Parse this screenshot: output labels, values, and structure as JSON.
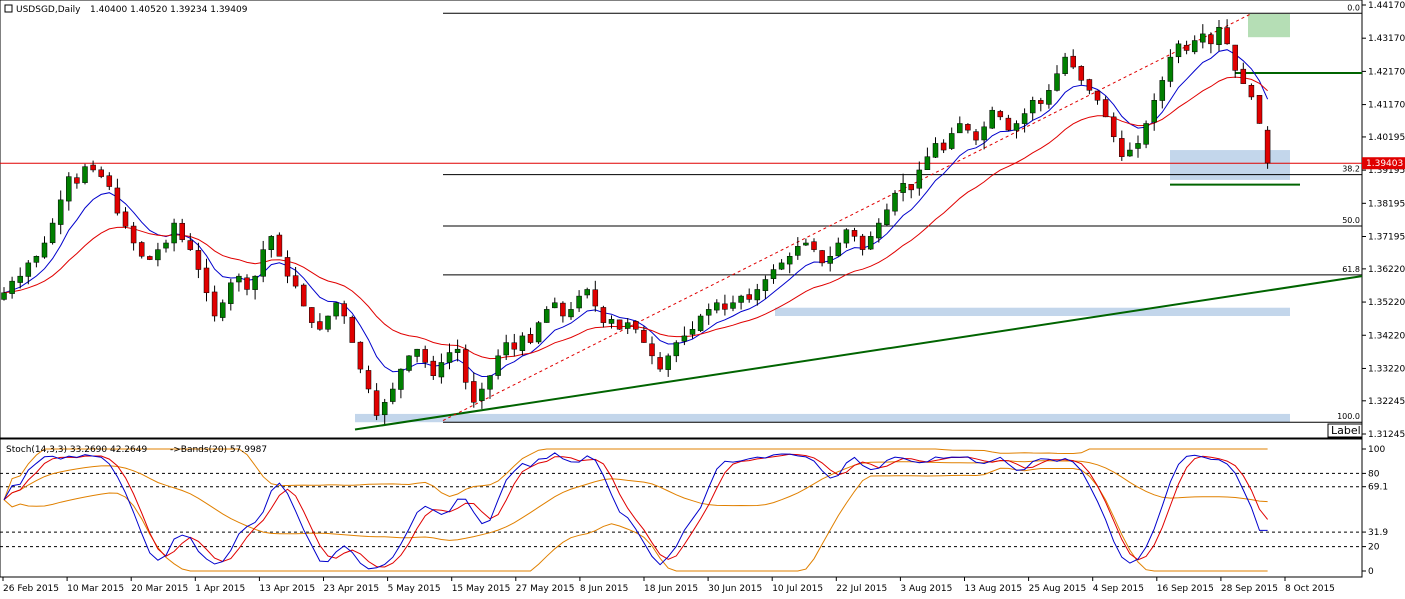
{
  "header": {
    "symbol": "USDSGD,Daily",
    "ohlc": "1.40400 1.40520 1.39234 1.39409",
    "stoch_label": "Stoch(14,3,3) 33.2690 42.2649",
    "bands_label": "->Bands(20) 57.9987"
  },
  "price_axis": {
    "ticks": [
      "1.44170",
      "1.43170",
      "1.42170",
      "1.41170",
      "1.40195",
      "1.39195",
      "1.38195",
      "1.37195",
      "1.36220",
      "1.35220",
      "1.34220",
      "1.33220",
      "1.32245",
      "1.31245"
    ],
    "current_price": "1.39403",
    "current_price_color": "#e00000"
  },
  "fib_levels": [
    {
      "label": "0.0",
      "value": 1.4392
    },
    {
      "label": "38.2",
      "value": 1.3906
    },
    {
      "label": "50.0",
      "value": 1.3751
    },
    {
      "label": "61.8",
      "value": 1.3604
    },
    {
      "label": "100.0",
      "value": 1.316
    }
  ],
  "label_box": "Label",
  "osc_axis": {
    "ticks": [
      "100",
      "80",
      "69.1",
      "31.9",
      "20",
      "0"
    ]
  },
  "date_axis": {
    "ticks": [
      "26 Feb 2015",
      "10 Mar 2015",
      "20 Mar 2015",
      "1 Apr 2015",
      "13 Apr 2015",
      "23 Apr 2015",
      "5 May 2015",
      "15 May 2015",
      "27 May 2015",
      "8 Jun 2015",
      "18 Jun 2015",
      "30 Jun 2015",
      "10 Jul 2015",
      "22 Jul 2015",
      "3 Aug 2015",
      "13 Aug 2015",
      "25 Aug 2015",
      "4 Sep 2015",
      "16 Sep 2015",
      "28 Sep 2015",
      "8 Oct 2015"
    ]
  },
  "colors": {
    "bull": "#008000",
    "bear": "#e00000",
    "ma_fast": "#0000cc",
    "ma_slow": "#e00000",
    "trendline": "#006400",
    "zone": "#b8cfe8",
    "zone_green": "#a8d8a8",
    "stoch_main": "#0000cc",
    "stoch_signal": "#e00000",
    "bands": "#e08000"
  },
  "chart_data": {
    "type": "candlestick",
    "symbol": "USDSGD",
    "timeframe": "Daily",
    "x_start": "26 Feb 2015",
    "x_end": "8 Oct 2015",
    "ylim": [
      1.31245,
      1.4417
    ],
    "last": {
      "open": 1.404,
      "high": 1.4052,
      "low": 1.39234,
      "close": 1.39409
    },
    "closes": [
      1.355,
      1.3585,
      1.36,
      1.364,
      1.366,
      1.37,
      1.376,
      1.383,
      1.39,
      1.388,
      1.393,
      1.392,
      1.39,
      1.387,
      1.379,
      1.375,
      1.37,
      1.366,
      1.365,
      1.368,
      1.37,
      1.376,
      1.371,
      1.368,
      1.362,
      1.355,
      1.348,
      1.352,
      1.358,
      1.36,
      1.356,
      1.36,
      1.368,
      1.372,
      1.366,
      1.36,
      1.357,
      1.351,
      1.346,
      1.344,
      1.348,
      1.352,
      1.348,
      1.34,
      1.332,
      1.326,
      1.318,
      1.322,
      1.326,
      1.332,
      1.336,
      1.338,
      1.334,
      1.33,
      1.334,
      1.337,
      1.338,
      1.328,
      1.322,
      1.326,
      1.33,
      1.336,
      1.34,
      1.338,
      1.342,
      1.34,
      1.346,
      1.35,
      1.352,
      1.348,
      1.35,
      1.354,
      1.356,
      1.351,
      1.346,
      1.347,
      1.344,
      1.346,
      1.344,
      1.34,
      1.336,
      1.332,
      1.336,
      1.34,
      1.342,
      1.344,
      1.348,
      1.35,
      1.352,
      1.35,
      1.352,
      1.354,
      1.353,
      1.356,
      1.359,
      1.362,
      1.364,
      1.366,
      1.369,
      1.37,
      1.368,
      1.364,
      1.366,
      1.37,
      1.374,
      1.372,
      1.368,
      1.372,
      1.376,
      1.38,
      1.385,
      1.388,
      1.386,
      1.392,
      1.396,
      1.4,
      1.398,
      1.403,
      1.406,
      1.404,
      1.401,
      1.405,
      1.41,
      1.408,
      1.404,
      1.406,
      1.409,
      1.413,
      1.412,
      1.416,
      1.421,
      1.426,
      1.423,
      1.419,
      1.416,
      1.413,
      1.408,
      1.402,
      1.396,
      1.398,
      1.4,
      1.406,
      1.413,
      1.419,
      1.426,
      1.43,
      1.428,
      1.431,
      1.433,
      1.43,
      1.435,
      1.43,
      1.422,
      1.418,
      1.414,
      1.406,
      1.3941
    ],
    "zones": [
      {
        "type": "support",
        "from": 1.3505,
        "to": 1.348
      },
      {
        "type": "support",
        "from": 1.3185,
        "to": 1.316
      },
      {
        "type": "support",
        "from": 1.398,
        "to": 1.389
      },
      {
        "type": "resistance",
        "from": 1.439,
        "to": 1.432
      }
    ],
    "horizontal_levels": [
      1.4212,
      1.3876
    ],
    "oscillator": {
      "name": "Stoch(14,3,3)",
      "main": 33.269,
      "signal": 42.2649,
      "bands": 57.9987,
      "levels": [
        80,
        69.1,
        31.9,
        20
      ]
    }
  }
}
